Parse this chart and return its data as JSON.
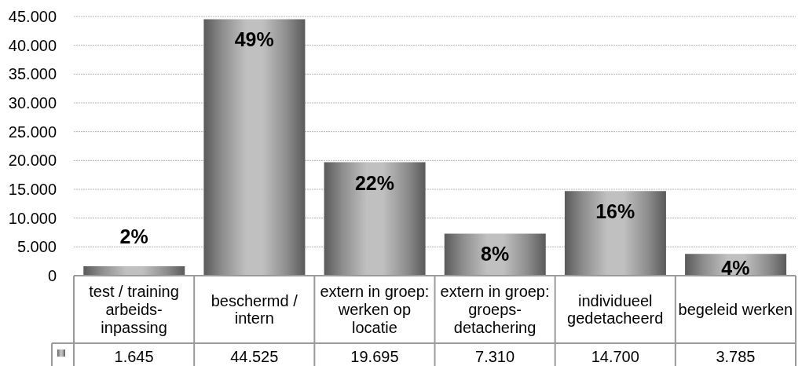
{
  "chart_data": {
    "type": "bar",
    "categories": [
      "test / training arbeids-inpassing",
      "beschermd / intern",
      "extern in groep: werken op locatie",
      "extern in groep: groeps-detachering",
      "individueel gedetacheerd",
      "begeleid werken"
    ],
    "values": [
      1645,
      44525,
      19695,
      7310,
      14700,
      3785
    ],
    "color": "#8d8d8d",
    "value_labels": [
      "1.645",
      "44.525",
      "19.695",
      "7.310",
      "14.700",
      "3.785"
    ],
    "annotations": [
      {
        "text": "2%",
        "x": "test / training arbeids-inpassing",
        "y": 1645
      },
      {
        "text": "49%",
        "x": "beschermd / intern",
        "y": 44525
      },
      {
        "text": "22%",
        "x": "extern in groep: werken op locatie",
        "y": 19695
      },
      {
        "text": "8%",
        "x": "extern in groep: groeps-detachering",
        "y": 7310
      },
      {
        "text": "16%",
        "x": "individueel gedetacheerd",
        "y": 14700
      },
      {
        "text": "4%",
        "x": "begeleid werken",
        "y": 3785
      }
    ],
    "ylim": [
      0,
      45000
    ],
    "yticks": [
      0,
      {
        "value": 5000,
        "label": "5.000"
      },
      {
        "value": 10000,
        "label": "10.000"
      },
      {
        "value": 15000,
        "label": "15.000"
      },
      {
        "value": 20000,
        "label": "20.000"
      },
      {
        "value": 25000,
        "label": "25.000"
      },
      {
        "value": 30000,
        "label": "30.000"
      },
      {
        "value": 35000,
        "label": "35.000"
      },
      {
        "value": 40000,
        "label": "40.000"
      },
      {
        "value": 45000,
        "label": "45.000"
      }
    ],
    "grid": "y"
  }
}
